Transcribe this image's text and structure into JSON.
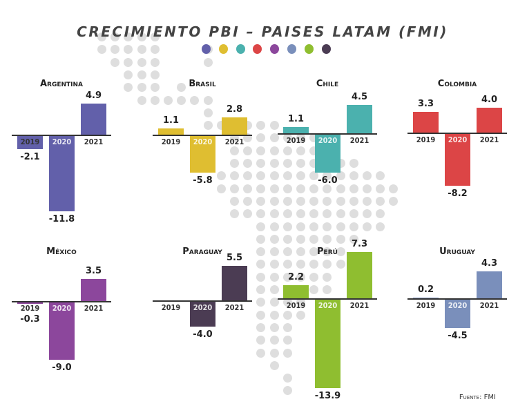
{
  "chart_data": {
    "type": "bar",
    "title": "CRECIMIENTO PBI – PAISES LATAM  (FMI)",
    "categories": [
      "2019",
      "2020",
      "2021"
    ],
    "source": "Fuente: FMI",
    "series": [
      {
        "name": "Argentina",
        "color": "#6260aa",
        "values": [
          -2.1,
          -11.8,
          4.9
        ]
      },
      {
        "name": "Brasil",
        "color": "#dfbe31",
        "values": [
          1.1,
          -5.8,
          2.8
        ]
      },
      {
        "name": "Chile",
        "color": "#4bb1ae",
        "values": [
          1.1,
          -6.0,
          4.5
        ]
      },
      {
        "name": "Colombia",
        "color": "#dc4546",
        "values": [
          3.3,
          -8.2,
          4.0
        ]
      },
      {
        "name": "México",
        "color": "#8c479c",
        "values": [
          -0.3,
          -9.0,
          3.5
        ]
      },
      {
        "name": "Paraguay",
        "color": "#4b3c53",
        "values": [
          0.0,
          -4.0,
          5.5
        ]
      },
      {
        "name": "Perú",
        "color": "#8fbe30",
        "values": [
          2.2,
          -13.9,
          7.3
        ]
      },
      {
        "name": "Uruguay",
        "color": "#7a8fbb",
        "values": [
          0.2,
          -4.5,
          4.3
        ]
      }
    ],
    "legend_colors": [
      "#6260aa",
      "#dfbe31",
      "#4bb1ae",
      "#dc4546",
      "#8c479c",
      "#7a8fbb",
      "#8fbe30",
      "#4b3c53"
    ],
    "value_labels": [
      [
        "-2.1",
        "-11.8",
        "4.9"
      ],
      [
        "1.1",
        "-5.8",
        "2.8"
      ],
      [
        "1.1",
        "-6.0",
        "4.5"
      ],
      [
        "3.3",
        "-8.2",
        "4.0"
      ],
      [
        "-0.3",
        "-9.0",
        "3.5"
      ],
      [
        "",
        "-4.0",
        "5.5"
      ],
      [
        "2.2",
        "-13.9",
        "7.3"
      ],
      [
        "0.2",
        "-4.5",
        "4.3"
      ]
    ],
    "grid": false,
    "legend_position": "top"
  }
}
